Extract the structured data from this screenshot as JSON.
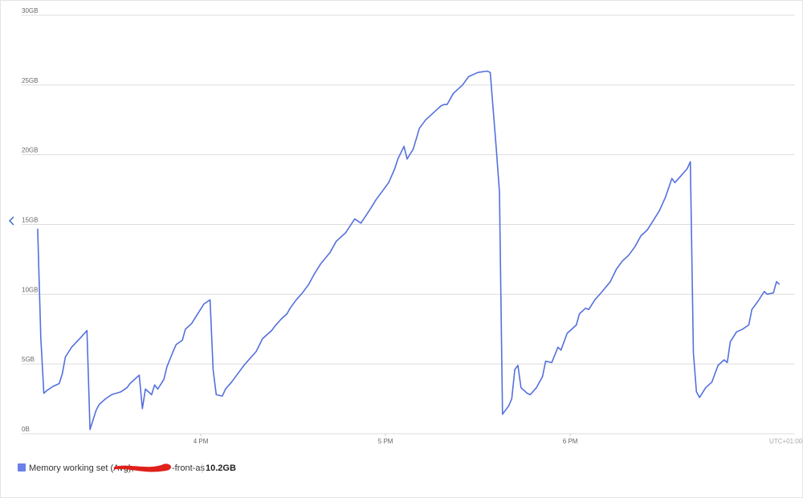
{
  "chart_data": {
    "type": "line",
    "x": [
      907,
      908,
      909,
      910,
      912,
      914,
      915,
      916,
      918,
      921,
      923,
      924,
      926,
      927,
      929,
      931,
      934,
      936,
      937,
      939,
      940,
      941,
      942,
      944,
      945,
      946,
      948,
      949,
      951,
      952,
      954,
      955,
      957,
      959,
      961,
      963,
      964,
      965,
      967,
      968,
      970,
      972,
      974,
      976,
      978,
      980,
      981,
      983,
      984,
      986,
      988,
      989,
      991,
      993,
      995,
      997,
      999,
      1002,
      1004,
      1007,
      1010,
      1012,
      1015,
      1017,
      1019,
      1021,
      1023,
      1024,
      1026,
      1027,
      1029,
      1031,
      1033,
      1036,
      1038,
      1039,
      1040,
      1042,
      1045,
      1047,
      1050,
      1053,
      1054,
      1056,
      1057,
      1058,
      1060,
      1061,
      1062,
      1063,
      1064,
      1066,
      1067,
      1069,
      1071,
      1072,
      1074,
      1076,
      1077,
      1079,
      1082,
      1083,
      1085,
      1086,
      1088,
      1090,
      1093,
      1095,
      1097,
      1099,
      1101,
      1103,
      1105,
      1107,
      1109,
      1111,
      1113,
      1114,
      1116,
      1118,
      1119,
      1120,
      1121,
      1122,
      1124,
      1126,
      1128,
      1130,
      1131,
      1132,
      1134,
      1136,
      1138,
      1139,
      1141,
      1143,
      1144,
      1146,
      1147,
      1148
    ],
    "series": [
      {
        "name": "Memory working set (Avg),",
        "color": "#5470dc",
        "values": [
          14.7,
          6.9,
          2.9,
          3.1,
          3.4,
          3.6,
          4.3,
          5.5,
          6.2,
          6.9,
          7.4,
          0.3,
          1.7,
          2.1,
          2.5,
          2.8,
          3.0,
          3.3,
          3.6,
          4.0,
          4.2,
          1.8,
          3.2,
          2.8,
          3.5,
          3.2,
          3.9,
          4.8,
          5.9,
          6.4,
          6.7,
          7.5,
          7.9,
          8.6,
          9.3,
          9.6,
          4.6,
          2.8,
          2.7,
          3.2,
          3.7,
          4.3,
          4.9,
          5.4,
          5.9,
          6.8,
          7.0,
          7.4,
          7.7,
          8.2,
          8.6,
          9.0,
          9.6,
          10.1,
          10.7,
          11.5,
          12.2,
          13.0,
          13.8,
          14.4,
          15.4,
          15.1,
          16.1,
          16.8,
          17.4,
          18.0,
          19.0,
          19.7,
          20.6,
          19.7,
          20.4,
          21.9,
          22.5,
          23.1,
          23.5,
          23.6,
          23.6,
          24.4,
          25.0,
          25.6,
          25.9,
          26.0,
          25.9,
          20.4,
          17.3,
          1.4,
          2.0,
          2.5,
          4.6,
          4.9,
          3.3,
          2.9,
          2.8,
          3.3,
          4.1,
          5.2,
          5.1,
          6.2,
          6.0,
          7.2,
          7.8,
          8.6,
          9.0,
          8.9,
          9.6,
          10.1,
          10.9,
          11.8,
          12.4,
          12.8,
          13.4,
          14.2,
          14.6,
          15.3,
          16.0,
          17.0,
          18.3,
          18.0,
          18.5,
          19.0,
          19.5,
          5.8,
          3.0,
          2.6,
          3.3,
          3.7,
          4.9,
          5.3,
          5.1,
          6.6,
          7.3,
          7.5,
          7.8,
          8.9,
          9.5,
          10.2,
          10.0,
          10.1,
          10.9,
          10.7
        ]
      }
    ],
    "legend_resource": "-front-as",
    "legend_value": "10.2GB",
    "timezone": "UTC+01:00",
    "xlim": [
      906.5,
      1153
    ],
    "xticks": [
      {
        "value": 960,
        "label": "4 PM"
      },
      {
        "value": 1020,
        "label": "5 PM"
      },
      {
        "value": 1080,
        "label": "6 PM"
      }
    ],
    "ylim": [
      0,
      30
    ],
    "yticks": [
      {
        "value": 0,
        "label": "0B"
      },
      {
        "value": 5,
        "label": "5GB"
      },
      {
        "value": 10,
        "label": "10GB"
      },
      {
        "value": 15,
        "label": "15GB"
      },
      {
        "value": 20,
        "label": "20GB"
      },
      {
        "value": 25,
        "label": "25GB"
      },
      {
        "value": 30,
        "label": "30GB"
      }
    ],
    "grid": true
  }
}
